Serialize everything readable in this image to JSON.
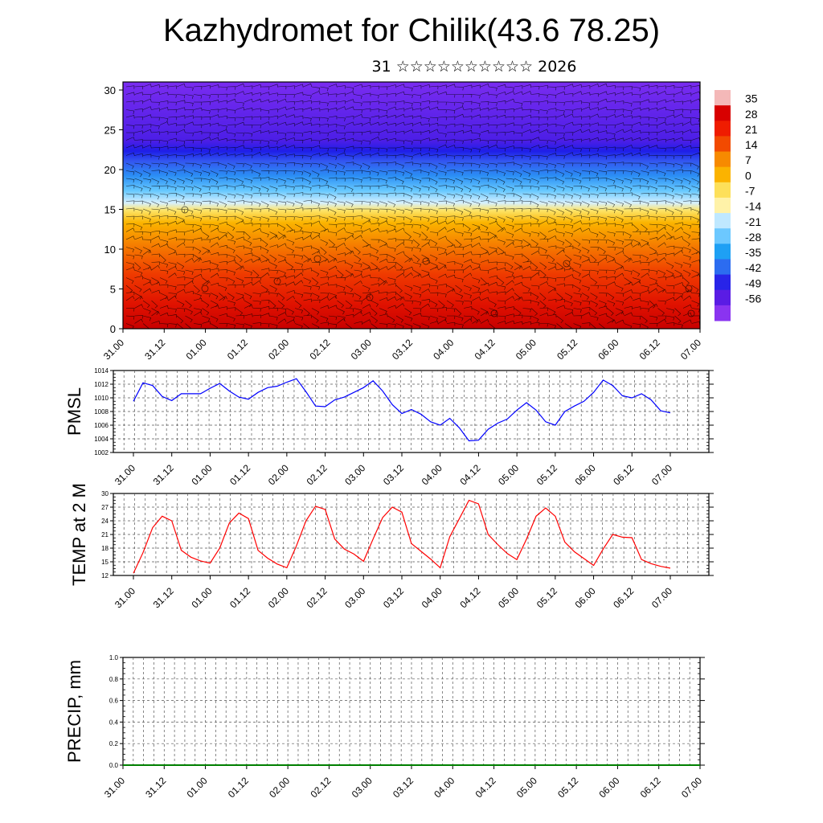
{
  "header": {
    "title": "Kazhydromet for Chilik(43.6 78.25)",
    "subtitle": "31 ☆☆☆☆☆☆☆☆☆☆ 2026"
  },
  "time_ticks": [
    "31.00",
    "31.12",
    "01.00",
    "01.12",
    "02.00",
    "02.12",
    "03.00",
    "03.12",
    "04.00",
    "04.12",
    "05.00",
    "05.12",
    "06.00",
    "06.12",
    "07.00"
  ],
  "chart_data": [
    {
      "type": "heatmap",
      "name": "vertical-temperature-section",
      "description_axes": "time vs height with wind barbs",
      "ylim": [
        0,
        30
      ],
      "yticks": [
        "0",
        "5",
        "10",
        "15",
        "20",
        "25",
        "30"
      ],
      "x": [
        "31.00",
        "31.12",
        "01.00",
        "01.12",
        "02.00",
        "02.12",
        "03.00",
        "03.12",
        "04.00",
        "04.12",
        "05.00",
        "05.12",
        "06.00",
        "06.12",
        "07.00"
      ],
      "colorbar_labels": [
        "35",
        "28",
        "21",
        "14",
        "7",
        "0",
        "-7",
        "-14",
        "-21",
        "-28",
        "-35",
        "-42",
        "-49",
        "-56"
      ],
      "colorbar_colors": [
        "#f4b8b8",
        "#d80000",
        "#ef1c00",
        "#f24a00",
        "#f78a00",
        "#fbb300",
        "#fde05a",
        "#fff2a8",
        "#bfe8ff",
        "#6cc8ff",
        "#1ea0f4",
        "#2c6cf0",
        "#2824e8",
        "#5a1ce4",
        "#8a34f0"
      ]
    },
    {
      "type": "line",
      "name": "PMSL",
      "ylabel": "PMSL",
      "ylim": [
        1002,
        1014
      ],
      "yticks": [
        "1002",
        "1004",
        "1006",
        "1008",
        "1010",
        "1012",
        "1014"
      ],
      "color": "#0000ff",
      "values": [
        1009.5,
        1012.2,
        1011.8,
        1010.2,
        1009.6,
        1010.6,
        1010.6,
        1010.6,
        1011.4,
        1012.1,
        1011.0,
        1010.1,
        1009.8,
        1010.8,
        1011.5,
        1011.7,
        1012.3,
        1012.8,
        1010.9,
        1008.8,
        1008.7,
        1009.7,
        1010.1,
        1010.8,
        1011.5,
        1012.5,
        1011.0,
        1009.0,
        1007.7,
        1008.3,
        1007.6,
        1006.5,
        1006.0,
        1007.0,
        1005.6,
        1003.7,
        1003.8,
        1005.4,
        1006.3,
        1006.9,
        1008.2,
        1009.3,
        1008.2,
        1006.5,
        1006.0,
        1008.0,
        1008.8,
        1009.5,
        1010.8,
        1012.6,
        1011.8,
        1010.3,
        1010.0,
        1010.6,
        1009.7,
        1008.1,
        1007.8
      ]
    },
    {
      "type": "line",
      "name": "TEMP at 2 M",
      "ylabel": "TEMP at 2 M",
      "ylim": [
        12,
        30
      ],
      "yticks": [
        "12",
        "15",
        "18",
        "21",
        "24",
        "27",
        "30"
      ],
      "color": "#ff0000",
      "values": [
        12.5,
        17.0,
        22.5,
        25.0,
        24.0,
        17.5,
        16.0,
        15.2,
        14.7,
        18.0,
        23.5,
        25.7,
        24.5,
        17.5,
        15.8,
        14.5,
        13.7,
        18.5,
        24.0,
        27.2,
        26.5,
        20.0,
        17.8,
        16.7,
        15.1,
        20.0,
        24.7,
        27.0,
        25.9,
        19.0,
        17.3,
        15.6,
        13.7,
        20.5,
        24.5,
        28.5,
        27.7,
        21.0,
        18.8,
        16.8,
        15.5,
        20.0,
        25.0,
        26.8,
        25.0,
        19.3,
        17.2,
        15.7,
        14.2,
        17.8,
        21.0,
        20.4,
        20.3,
        15.5,
        14.6,
        14.0,
        13.6
      ]
    },
    {
      "type": "line",
      "name": "PRECIP",
      "ylabel": "PRECIP, mm",
      "ylim": [
        0.0,
        1.0
      ],
      "yticks": [
        "0.0",
        "0.2",
        "0.4",
        "0.6",
        "0.8",
        "1.0"
      ],
      "color": "#008000",
      "values": [
        0,
        0,
        0,
        0,
        0,
        0,
        0,
        0,
        0,
        0,
        0,
        0,
        0,
        0,
        0,
        0,
        0,
        0,
        0,
        0,
        0,
        0,
        0,
        0,
        0,
        0,
        0,
        0,
        0,
        0,
        0,
        0,
        0,
        0,
        0,
        0,
        0,
        0,
        0,
        0,
        0,
        0,
        0,
        0,
        0,
        0,
        0,
        0,
        0,
        0,
        0,
        0,
        0,
        0,
        0,
        0,
        0
      ]
    }
  ]
}
